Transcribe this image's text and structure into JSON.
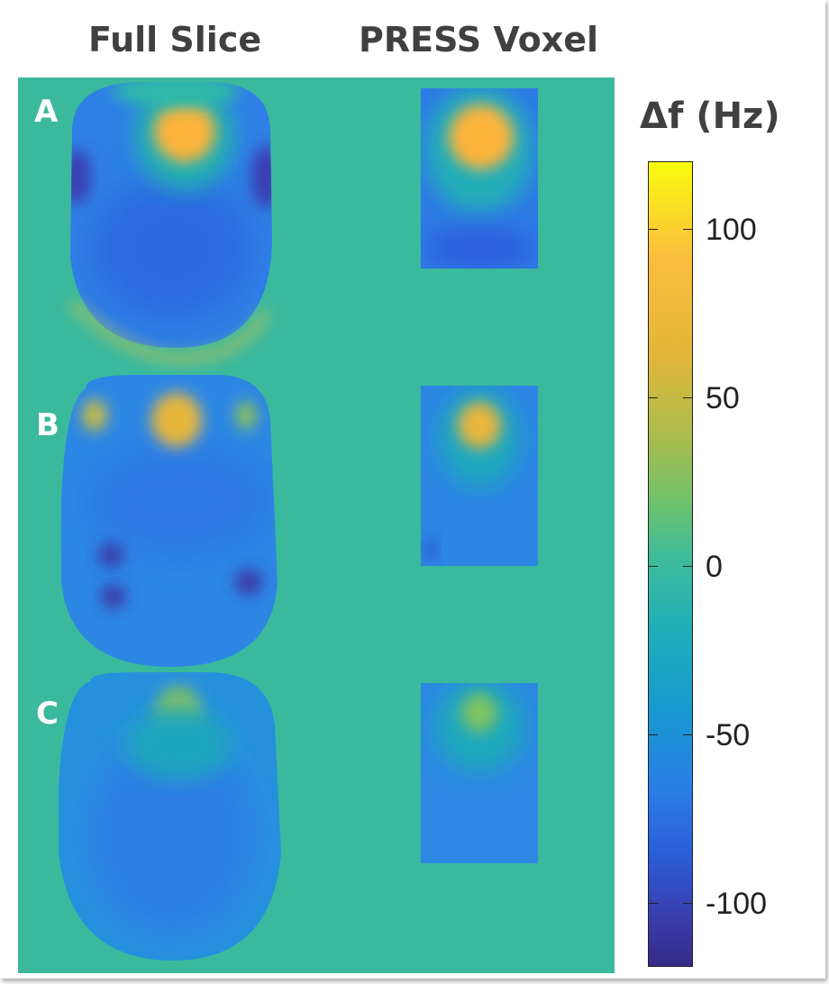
{
  "columns": {
    "full_slice": "Full Slice",
    "press_voxel": "PRESS Voxel"
  },
  "rows": [
    "A",
    "B",
    "C"
  ],
  "colorbar": {
    "title": "Δf (Hz)",
    "ticks": [
      "100",
      "50",
      "0",
      "-50",
      "-100"
    ],
    "colormap": "parula",
    "range": [
      -120,
      120
    ]
  },
  "colors": {
    "background": "#3bb99d",
    "title_text": "#404040",
    "label_text": "#ffffff"
  }
}
